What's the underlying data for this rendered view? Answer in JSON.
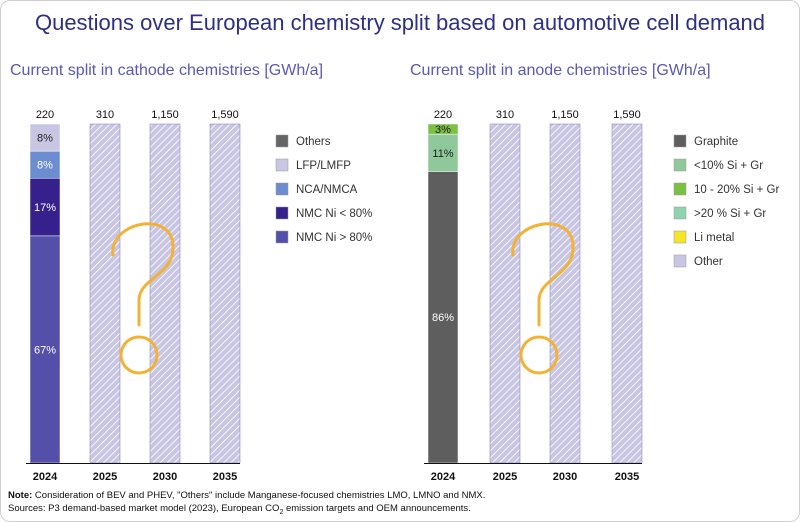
{
  "title": "Questions over European chemistry split based on automotive cell demand",
  "footer": {
    "note_label": "Note:",
    "note_text": " Consideration of BEV and PHEV, \"Others\" include Manganese-focused chemistries LMO, LMNO and NMX.",
    "sources_before": "Sources: P3 demand-based market model (2023), European CO",
    "sources_sub": "2",
    "sources_after": " emission targets and OEM announcements."
  },
  "colors": {
    "hatch_fill": "#c9c6e3",
    "hatch_line": "#ffffff",
    "question_mark": "#f2b335",
    "axis": "#111111"
  },
  "chart_data": [
    {
      "type": "bar",
      "subtitle": "Current split in cathode chemistries [GWh/a]",
      "categories": [
        "2024",
        "2025",
        "2030",
        "2035"
      ],
      "totals": [
        "220",
        "310",
        "1,150",
        "1,590"
      ],
      "legend": [
        {
          "name": "Others",
          "color": "#666666"
        },
        {
          "name": "LFP/LMFP",
          "color": "#c9c6e3"
        },
        {
          "name": "NCA/NMCA",
          "color": "#6c8dcf"
        },
        {
          "name": "NMC Ni < 80%",
          "color": "#35208c"
        },
        {
          "name": "NMC Ni > 80%",
          "color": "#5450aa"
        }
      ],
      "stack_2024": [
        {
          "series": "NMC Ni > 80%",
          "value": 67,
          "label": "67%"
        },
        {
          "series": "NMC Ni < 80%",
          "value": 17,
          "label": "17%"
        },
        {
          "series": "NCA/NMCA",
          "value": 8,
          "label": "8%"
        },
        {
          "series": "LFP/LMFP",
          "value": 8,
          "label": "8%"
        }
      ],
      "unknown_categories": [
        "2025",
        "2030",
        "2035"
      ]
    },
    {
      "type": "bar",
      "subtitle": "Current split in anode chemistries [GWh/a]",
      "categories": [
        "2024",
        "2025",
        "2030",
        "2035"
      ],
      "totals": [
        "220",
        "310",
        "1,150",
        "1,590"
      ],
      "legend": [
        {
          "name": "Graphite",
          "color": "#5e5e5e"
        },
        {
          "name": "<10% Si + Gr",
          "color": "#8fc99b"
        },
        {
          "name": "10 - 20% Si + Gr",
          "color": "#7cc043"
        },
        {
          "name": ">20 % Si + Gr",
          "color": "#8fd3b0"
        },
        {
          "name": "Li metal",
          "color": "#f4e52a"
        },
        {
          "name": "Other",
          "color": "#c9c6e3"
        }
      ],
      "stack_2024": [
        {
          "series": "Graphite",
          "value": 86,
          "label": "86%"
        },
        {
          "series": "<10% Si + Gr",
          "value": 11,
          "label": "11%"
        },
        {
          "series": "10 - 20% Si + Gr",
          "value": 3,
          "label": "3%"
        }
      ],
      "unknown_categories": [
        "2025",
        "2030",
        "2035"
      ]
    }
  ]
}
